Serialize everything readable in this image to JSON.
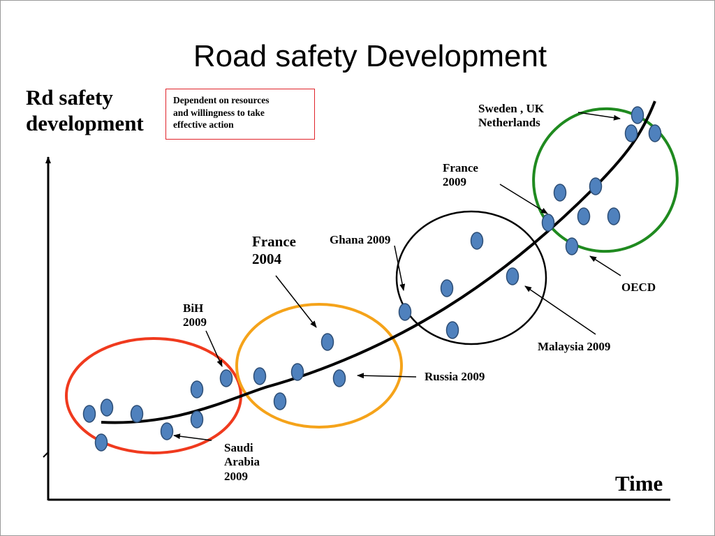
{
  "title": "Road safety Development",
  "y_axis_label_line1": "Rd safety",
  "y_axis_label_line2": "development",
  "x_axis_label": "Time",
  "note": {
    "line1": "Dependent on  resources",
    "line2": "and willingness  to  take",
    "line3": "effective action"
  },
  "labels": {
    "sweden_line1": "Sweden , UK",
    "sweden_line2": "Netherlands",
    "france2009_line1": "France",
    "france2009_line2": "2009",
    "france2004_line1": "France",
    "france2004_line2": "2004",
    "ghana": "Ghana 2009",
    "bih_line1": "BiH",
    "bih_line2": "2009",
    "oecd": "OECD",
    "malaysia": "Malaysia 2009",
    "russia": "Russia 2009",
    "saudi_line1": "Saudi",
    "saudi_line2": "Arabia",
    "saudi_line3": "2009"
  },
  "colors": {
    "dot_fill": "#4f81bd",
    "dot_stroke": "#2c4d75",
    "group1": "#f03a1e",
    "group2": "#f5a31a",
    "group3": "#000000",
    "group4": "#1f8a1f",
    "note_border": "#e0232a"
  }
}
